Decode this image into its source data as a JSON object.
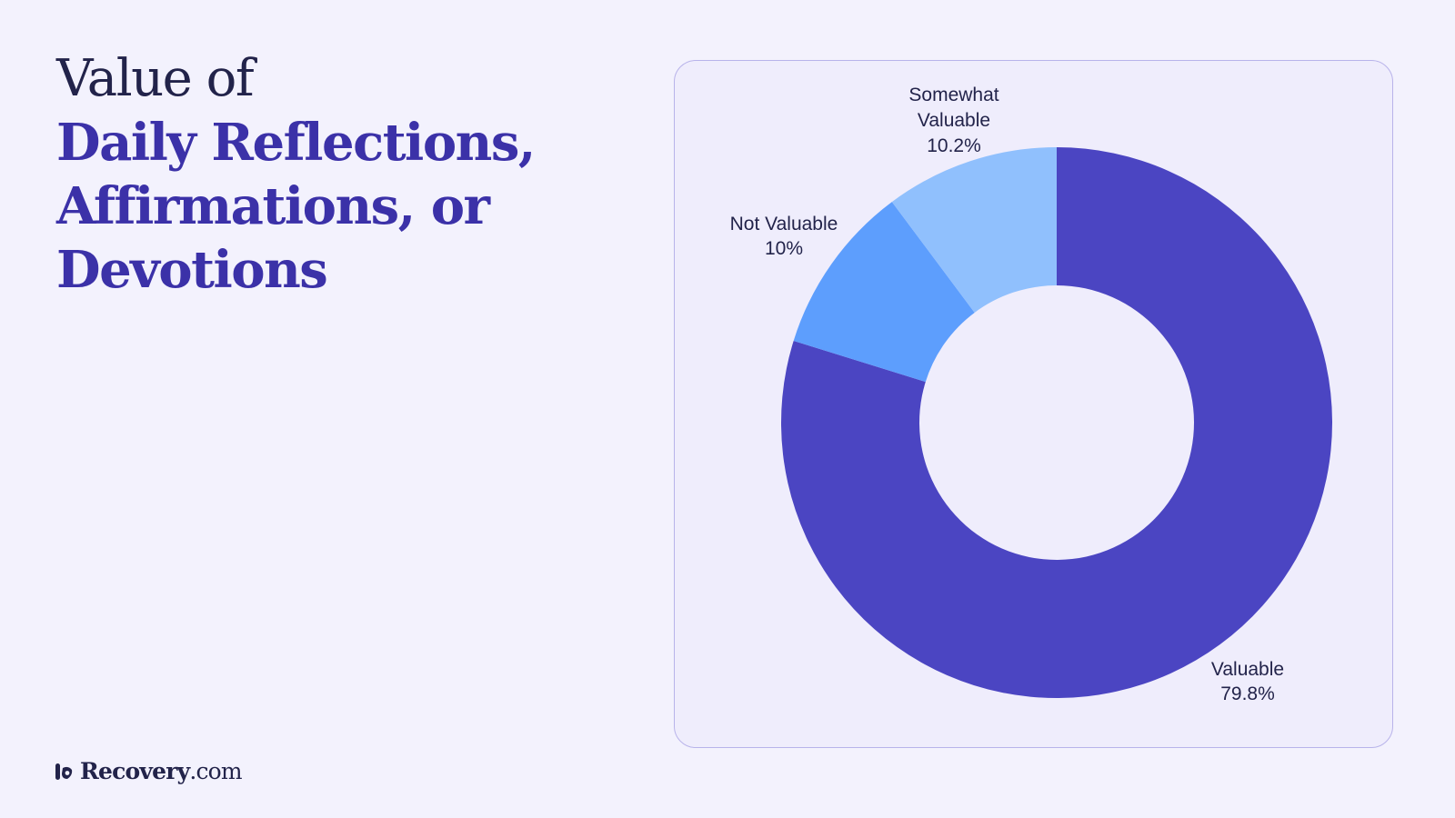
{
  "title": {
    "line1": "Value of",
    "line2": "Daily Reflections,",
    "line3": "Affirmations, or",
    "line4": "Devotions"
  },
  "brand": {
    "name": "Recovery",
    "suffix": ".com"
  },
  "colors": {
    "background": "#f3f2fd",
    "title_dark": "#22234a",
    "title_accent": "#3b31a8",
    "card_border": "#b8b3ea",
    "card_background": "#efedfc"
  },
  "chart_data": {
    "type": "pie",
    "donut": true,
    "categories": [
      "Valuable",
      "Not Valuable",
      "Somewhat Valuable"
    ],
    "values": [
      79.8,
      10,
      10.2
    ],
    "value_labels": [
      "79.8%",
      "10%",
      "10.2%"
    ],
    "slice_label_lines": [
      [
        "Valuable",
        "79.8%"
      ],
      [
        "Not Valuable",
        "10%"
      ],
      [
        "Somewhat",
        "Valuable",
        "10.2%"
      ]
    ],
    "colors": [
      "#4b45c2",
      "#5d9efd",
      "#90c0fd"
    ],
    "start": "12 o'clock, clockwise",
    "legend": "none"
  }
}
